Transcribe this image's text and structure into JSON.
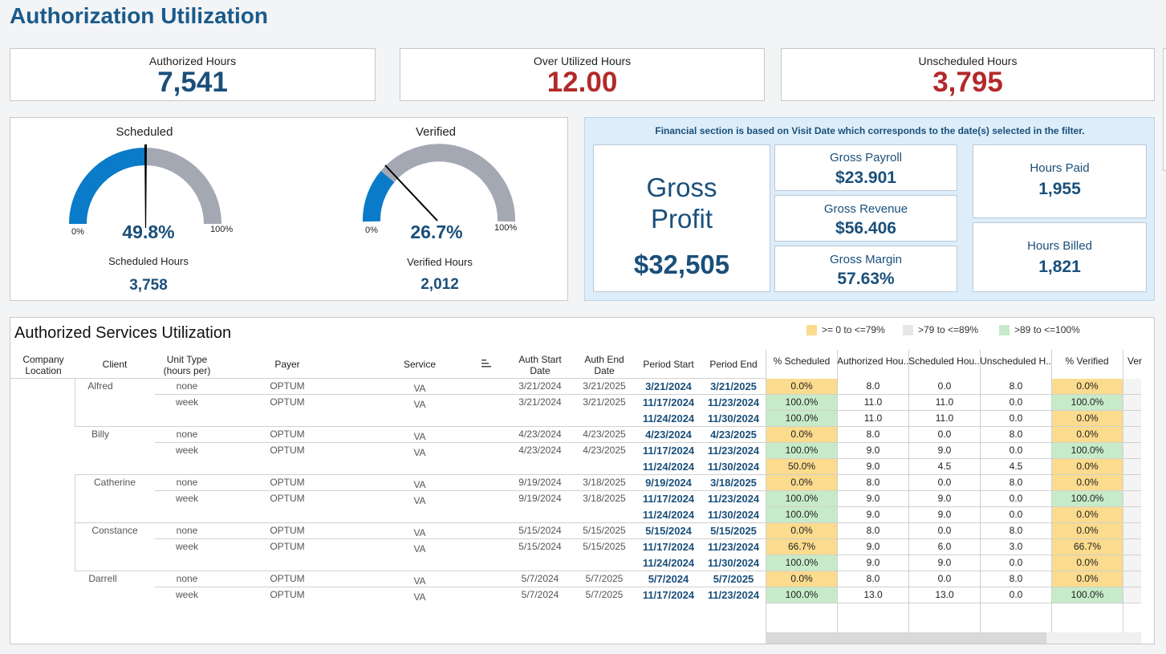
{
  "page": {
    "title": "Authorization Utilization"
  },
  "kpis": [
    {
      "label": "Authorized Hours",
      "value": "7,541",
      "color": "#1a4f7a"
    },
    {
      "label": "Over Utilized Hours",
      "value": "12.00",
      "color": "#b22a2a"
    },
    {
      "label": "Unscheduled Hours",
      "value": "3,795",
      "color": "#b22a2a"
    }
  ],
  "gauges": {
    "scheduled": {
      "title": "Scheduled",
      "percent_label": "49.8%",
      "percent": 49.8,
      "min_label": "0%",
      "max_label": "100%",
      "sub_label": "Scheduled Hours",
      "sub_value": "3,758"
    },
    "verified": {
      "title": "Verified",
      "percent_label": "26.7%",
      "percent": 26.7,
      "min_label": "0%",
      "max_label": "100%",
      "sub_label": "Verified Hours",
      "sub_value": "2,012"
    }
  },
  "financial": {
    "note": "Financial section is based on Visit Date which corresponds to the date(s) selected in the filter.",
    "gross_profit": {
      "label_line1": "Gross",
      "label_line2": "Profit",
      "value": "$32,505"
    },
    "gross_payroll": {
      "label": "Gross Payroll",
      "value": "$23.901"
    },
    "gross_revenue": {
      "label": "Gross Revenue",
      "value": "$56.406"
    },
    "gross_margin": {
      "label": "Gross Margin",
      "value": "57.63%"
    },
    "hours_paid": {
      "label": "Hours Paid",
      "value": "1,955"
    },
    "hours_billed": {
      "label": "Hours Billed",
      "value": "1,821"
    }
  },
  "table": {
    "title": "Authorized Services Utilization",
    "legend": [
      {
        "label": ">= 0 to <=79%",
        "color": "#fbdb8d"
      },
      {
        "label": ">79 to <=89%",
        "color": "#e6e6e6"
      },
      {
        "label": ">89 to <=100%",
        "color": "#c7ebc8"
      }
    ],
    "headers": {
      "company_location_1": "Company",
      "company_location_2": "Location",
      "client": "Client",
      "unit_type_1": "Unit Type",
      "unit_type_2": "(hours per)",
      "payer": "Payer",
      "service": "Service",
      "auth_start_1": "Auth Start",
      "auth_start_2": "Date",
      "auth_end_1": "Auth End",
      "auth_end_2": "Date",
      "period_start": "Period Start",
      "period_end": "Period End",
      "pct_scheduled": "% Scheduled",
      "authorized_hours": "Authorized Hou..",
      "scheduled_hours": "Scheduled Hou..",
      "unscheduled_hours": "Unscheduled H..",
      "pct_verified": "% Verified",
      "verified_trunc": "Ver"
    },
    "clients": [
      {
        "name": "Alfred"
      },
      {
        "name": "Billy"
      },
      {
        "name": "Catherine"
      },
      {
        "name": "Constance"
      },
      {
        "name": "Darrell"
      }
    ],
    "auth_rows": [
      {
        "unit": "none",
        "payer": "OPTUM",
        "service": "VA",
        "auth_start": "3/21/2024",
        "auth_end": "3/21/2025"
      },
      {
        "unit": "week",
        "payer": "OPTUM",
        "service": "VA",
        "auth_start": "3/21/2024",
        "auth_end": "3/21/2025"
      },
      {
        "unit": "none",
        "payer": "OPTUM",
        "service": "VA",
        "auth_start": "4/23/2024",
        "auth_end": "4/23/2025"
      },
      {
        "unit": "week",
        "payer": "OPTUM",
        "service": "VA",
        "auth_start": "4/23/2024",
        "auth_end": "4/23/2025"
      },
      {
        "unit": "none",
        "payer": "OPTUM",
        "service": "VA",
        "auth_start": "9/19/2024",
        "auth_end": "3/18/2025"
      },
      {
        "unit": "week",
        "payer": "OPTUM",
        "service": "VA",
        "auth_start": "9/19/2024",
        "auth_end": "3/18/2025"
      },
      {
        "unit": "none",
        "payer": "OPTUM",
        "service": "VA",
        "auth_start": "5/15/2024",
        "auth_end": "5/15/2025"
      },
      {
        "unit": "week",
        "payer": "OPTUM",
        "service": "VA",
        "auth_start": "5/15/2024",
        "auth_end": "5/15/2025"
      },
      {
        "unit": "none",
        "payer": "OPTUM",
        "service": "VA",
        "auth_start": "5/7/2024",
        "auth_end": "5/7/2025"
      },
      {
        "unit": "week",
        "payer": "OPTUM",
        "service": "VA",
        "auth_start": "5/7/2024",
        "auth_end": "5/7/2025"
      }
    ],
    "period_rows": [
      {
        "period_start": "3/21/2024",
        "period_end": "3/21/2025",
        "pct_sched": "0.0%",
        "auth_h": "8.0",
        "sched_h": "0.0",
        "unsched_h": "8.0",
        "pct_ver": "0.0%"
      },
      {
        "period_start": "11/17/2024",
        "period_end": "11/23/2024",
        "pct_sched": "100.0%",
        "auth_h": "11.0",
        "sched_h": "11.0",
        "unsched_h": "0.0",
        "pct_ver": "100.0%"
      },
      {
        "period_start": "11/24/2024",
        "period_end": "11/30/2024",
        "pct_sched": "100.0%",
        "auth_h": "11.0",
        "sched_h": "11.0",
        "unsched_h": "0.0",
        "pct_ver": "0.0%"
      },
      {
        "period_start": "4/23/2024",
        "period_end": "4/23/2025",
        "pct_sched": "0.0%",
        "auth_h": "8.0",
        "sched_h": "0.0",
        "unsched_h": "8.0",
        "pct_ver": "0.0%"
      },
      {
        "period_start": "11/17/2024",
        "period_end": "11/23/2024",
        "pct_sched": "100.0%",
        "auth_h": "9.0",
        "sched_h": "9.0",
        "unsched_h": "0.0",
        "pct_ver": "100.0%"
      },
      {
        "period_start": "11/24/2024",
        "period_end": "11/30/2024",
        "pct_sched": "50.0%",
        "auth_h": "9.0",
        "sched_h": "4.5",
        "unsched_h": "4.5",
        "pct_ver": "0.0%"
      },
      {
        "period_start": "9/19/2024",
        "period_end": "3/18/2025",
        "pct_sched": "0.0%",
        "auth_h": "8.0",
        "sched_h": "0.0",
        "unsched_h": "8.0",
        "pct_ver": "0.0%"
      },
      {
        "period_start": "11/17/2024",
        "period_end": "11/23/2024",
        "pct_sched": "100.0%",
        "auth_h": "9.0",
        "sched_h": "9.0",
        "unsched_h": "0.0",
        "pct_ver": "100.0%"
      },
      {
        "period_start": "11/24/2024",
        "period_end": "11/30/2024",
        "pct_sched": "100.0%",
        "auth_h": "9.0",
        "sched_h": "9.0",
        "unsched_h": "0.0",
        "pct_ver": "0.0%"
      },
      {
        "period_start": "5/15/2024",
        "period_end": "5/15/2025",
        "pct_sched": "0.0%",
        "auth_h": "8.0",
        "sched_h": "0.0",
        "unsched_h": "8.0",
        "pct_ver": "0.0%"
      },
      {
        "period_start": "11/17/2024",
        "period_end": "11/23/2024",
        "pct_sched": "66.7%",
        "auth_h": "9.0",
        "sched_h": "6.0",
        "unsched_h": "3.0",
        "pct_ver": "66.7%"
      },
      {
        "period_start": "11/24/2024",
        "period_end": "11/30/2024",
        "pct_sched": "100.0%",
        "auth_h": "9.0",
        "sched_h": "9.0",
        "unsched_h": "0.0",
        "pct_ver": "0.0%"
      },
      {
        "period_start": "5/7/2024",
        "period_end": "5/7/2025",
        "pct_sched": "0.0%",
        "auth_h": "8.0",
        "sched_h": "0.0",
        "unsched_h": "8.0",
        "pct_ver": "0.0%"
      },
      {
        "period_start": "11/17/2024",
        "period_end": "11/23/2024",
        "pct_sched": "100.0%",
        "auth_h": "13.0",
        "sched_h": "13.0",
        "unsched_h": "0.0",
        "pct_ver": "100.0%"
      }
    ]
  }
}
